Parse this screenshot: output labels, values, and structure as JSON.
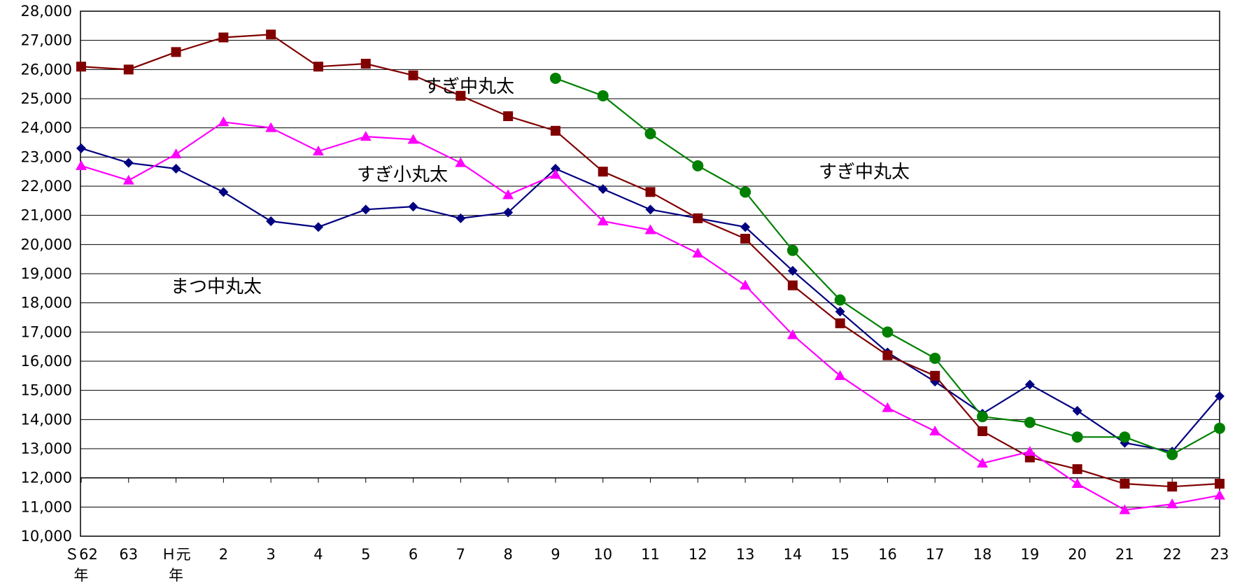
{
  "chart_data": {
    "type": "line",
    "categories": [
      "Ｓ62\n年",
      "63",
      "Ｈ元\n年",
      "2",
      "3",
      "4",
      "5",
      "6",
      "7",
      "8",
      "9",
      "10",
      "11",
      "12",
      "13",
      "14",
      "15",
      "16",
      "17",
      "18",
      "19",
      "20",
      "21",
      "22",
      "23"
    ],
    "ylim": [
      10000,
      28000
    ],
    "yticks": [
      "10,000",
      "11,000",
      "12,000",
      "13,000",
      "14,000",
      "15,000",
      "16,000",
      "17,000",
      "18,000",
      "19,000",
      "20,000",
      "21,000",
      "22,000",
      "23,000",
      "24,000",
      "25,000",
      "26,000",
      "27,000",
      "28,000"
    ],
    "grid": true,
    "series": [
      {
        "name": "まつ中丸太",
        "color": "#000080",
        "marker": "diamond",
        "values": [
          23300,
          22800,
          22600,
          21800,
          20800,
          20600,
          21200,
          21300,
          20900,
          21100,
          22600,
          21900,
          21200,
          20900,
          20600,
          19100,
          17700,
          16300,
          15300,
          14200,
          15200,
          14300,
          13200,
          12900,
          14800
        ]
      },
      {
        "name": "すぎ中丸太",
        "color": "#800000",
        "marker": "square",
        "values": [
          26100,
          26000,
          26600,
          27100,
          27200,
          26100,
          26200,
          25800,
          25100,
          24400,
          23900,
          22500,
          21800,
          20900,
          20200,
          18600,
          17300,
          16200,
          15500,
          13600,
          12700,
          12300,
          11800,
          11700,
          11800
        ]
      },
      {
        "name": "すぎ小丸太",
        "color": "#ff00ff",
        "marker": "triangle",
        "values": [
          22700,
          22200,
          23100,
          24200,
          24000,
          23200,
          23700,
          23600,
          22800,
          21700,
          22400,
          20800,
          20500,
          19700,
          18600,
          16900,
          15500,
          14400,
          13600,
          12500,
          12900,
          11800,
          10900,
          11100,
          11400
        ]
      },
      {
        "name": "すぎ中丸太",
        "color": "#008000",
        "marker": "circle",
        "values": [
          null,
          null,
          null,
          null,
          null,
          null,
          null,
          null,
          null,
          null,
          25700,
          25100,
          23800,
          22700,
          21800,
          19800,
          18100,
          17000,
          16100,
          14100,
          13900,
          13400,
          13400,
          12800,
          13700
        ]
      }
    ],
    "annotations": [
      {
        "text": "すぎ中丸太"
      },
      {
        "text": "すぎ小丸太"
      },
      {
        "text": "すぎ中丸太"
      },
      {
        "text": "まつ中丸太"
      }
    ]
  }
}
